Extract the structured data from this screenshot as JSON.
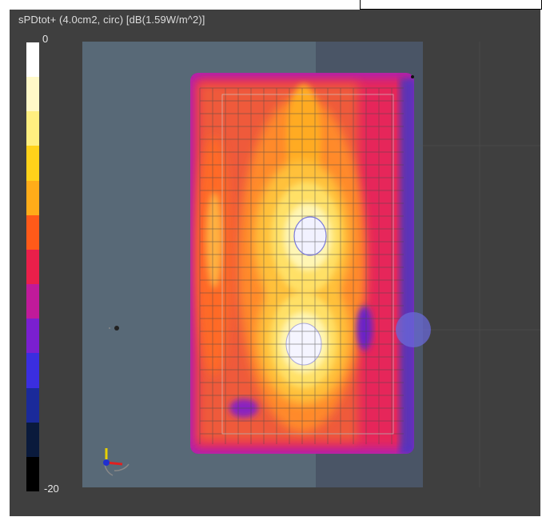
{
  "viewer": {
    "title": "sPDtot+ (4.0cm2, circ) [dB(1.59W/m^2)]",
    "colorbar": {
      "max_label": "0",
      "min_label": "-20",
      "min_db": -20,
      "max_db": 0,
      "colors": [
        "#ffffff",
        "#fff9c8",
        "#ffef80",
        "#ffd21a",
        "#ffac19",
        "#ff5a19",
        "#ea1f4a",
        "#c01a9a",
        "#7a1fd0",
        "#3a2ee0",
        "#1a2a9a",
        "#0a1a3c",
        "#000000"
      ]
    },
    "colors": {
      "background": "#3f3f3f",
      "plane": "#5a6b7a",
      "text": "#dcdcdc"
    },
    "icons": {
      "axis_triad": "xyz-axis-triad-icon"
    }
  }
}
